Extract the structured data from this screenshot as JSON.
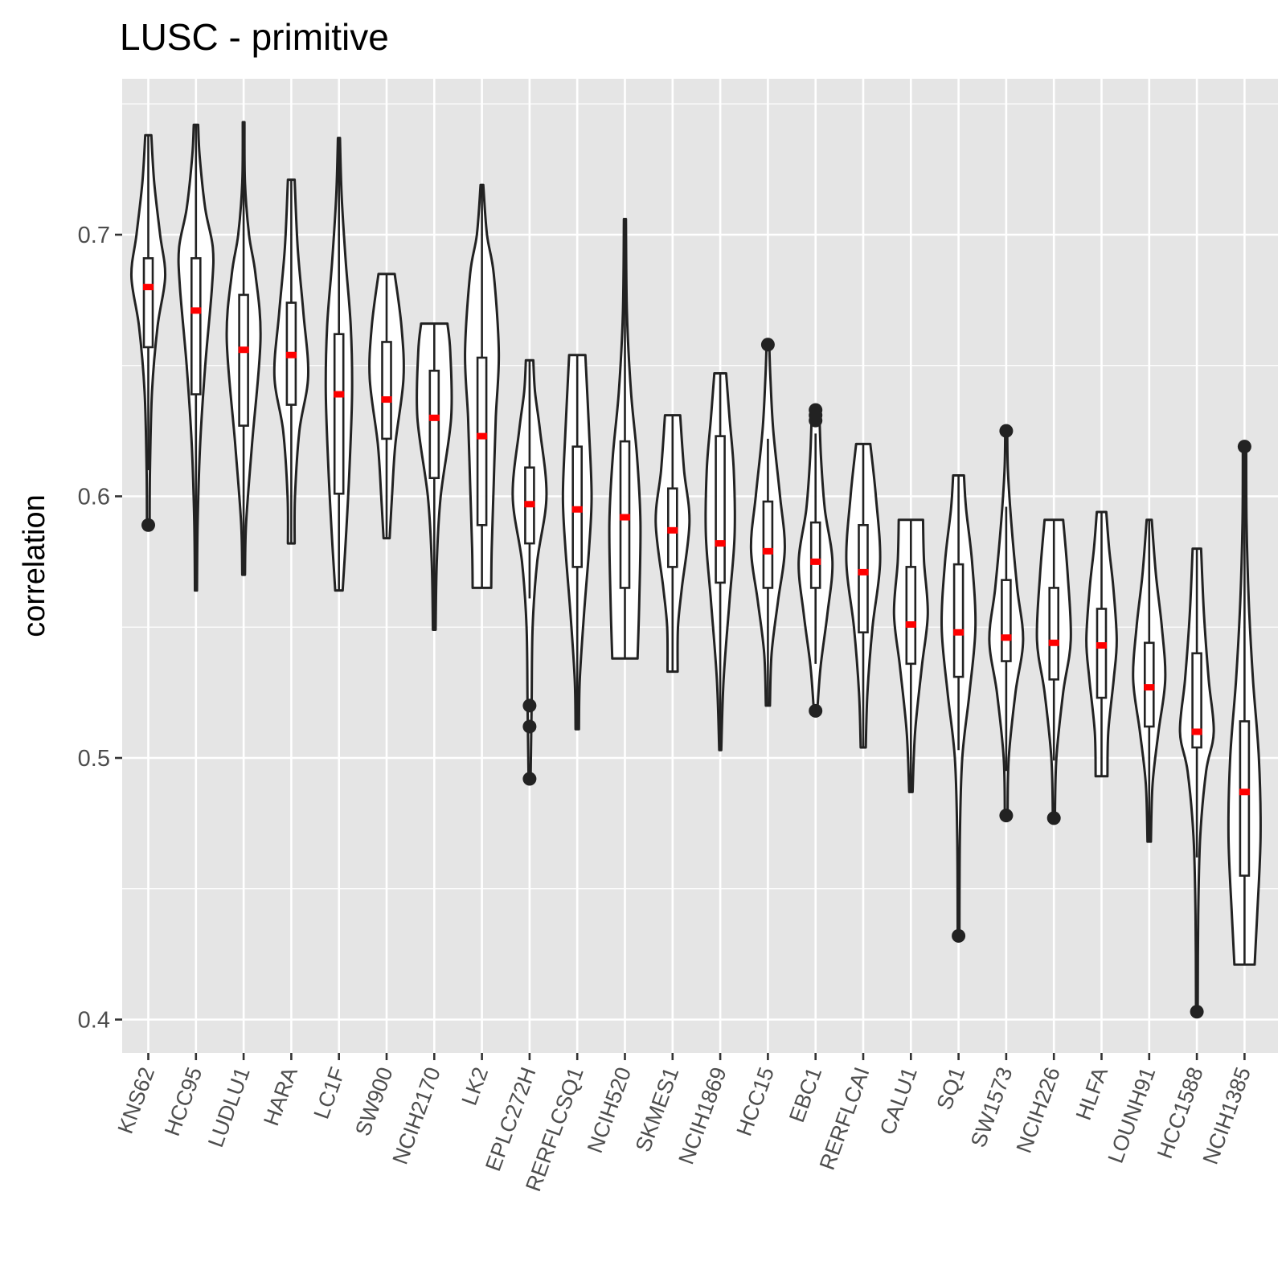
{
  "colors": {
    "panel": "#e5e5e5",
    "grid": "#ffffff",
    "violin_stroke": "#222222",
    "median": "#ff0000",
    "tick_text": "#4d4d4d"
  },
  "chart_data": {
    "type": "violin",
    "title": "LUSC - primitive",
    "xlabel": "",
    "ylabel": "correlation",
    "ylim": [
      0.39,
      0.75
    ],
    "yticks": [
      0.4,
      0.5,
      0.6,
      0.7
    ],
    "ytick_labels": [
      "0.4",
      "0.5",
      "0.6",
      "0.7"
    ],
    "grid": true,
    "categories": [
      "KNS62",
      "HCC95",
      "LUDLU1",
      "HARA",
      "LC1F",
      "SW900",
      "NCIH2170",
      "LK2",
      "EPLC272H",
      "RERFLCSQ1",
      "NCIH520",
      "SKMES1",
      "NCIH1869",
      "HCC15",
      "EBC1",
      "RERFLCAI",
      "CALU1",
      "SQ1",
      "SW1573",
      "NCIH226",
      "HLFA",
      "LOUNH91",
      "HCC1588",
      "NCIH1385"
    ],
    "series": [
      {
        "min": 0.589,
        "max": 0.738,
        "q1": 0.657,
        "median": 0.68,
        "q3": 0.691,
        "wlo": 0.61,
        "whi": 0.738,
        "outliers": [
          0.589
        ],
        "shape": [
          [
            0.589,
            0.08
          ],
          [
            0.61,
            0.1
          ],
          [
            0.64,
            0.22
          ],
          [
            0.665,
            0.55
          ],
          [
            0.684,
            1.0
          ],
          [
            0.7,
            0.7
          ],
          [
            0.72,
            0.35
          ],
          [
            0.738,
            0.18
          ]
        ]
      },
      {
        "min": 0.564,
        "max": 0.742,
        "q1": 0.639,
        "median": 0.671,
        "q3": 0.691,
        "wlo": 0.564,
        "whi": 0.742,
        "outliers": [],
        "shape": [
          [
            0.564,
            0.06
          ],
          [
            0.59,
            0.1
          ],
          [
            0.62,
            0.25
          ],
          [
            0.65,
            0.55
          ],
          [
            0.68,
            0.95
          ],
          [
            0.695,
            1.0
          ],
          [
            0.71,
            0.55
          ],
          [
            0.73,
            0.22
          ],
          [
            0.742,
            0.13
          ]
        ]
      },
      {
        "min": 0.57,
        "max": 0.743,
        "q1": 0.627,
        "median": 0.656,
        "q3": 0.677,
        "wlo": 0.57,
        "whi": 0.743,
        "outliers": [],
        "shape": [
          [
            0.57,
            0.08
          ],
          [
            0.59,
            0.15
          ],
          [
            0.62,
            0.5
          ],
          [
            0.66,
            1.0
          ],
          [
            0.685,
            0.7
          ],
          [
            0.7,
            0.32
          ],
          [
            0.72,
            0.08
          ],
          [
            0.743,
            0.05
          ]
        ]
      },
      {
        "min": 0.582,
        "max": 0.721,
        "q1": 0.635,
        "median": 0.654,
        "q3": 0.674,
        "wlo": 0.582,
        "whi": 0.721,
        "outliers": [],
        "shape": [
          [
            0.582,
            0.2
          ],
          [
            0.6,
            0.22
          ],
          [
            0.625,
            0.48
          ],
          [
            0.646,
            1.0
          ],
          [
            0.67,
            0.72
          ],
          [
            0.695,
            0.38
          ],
          [
            0.721,
            0.2
          ]
        ]
      },
      {
        "min": 0.564,
        "max": 0.737,
        "q1": 0.601,
        "median": 0.639,
        "q3": 0.662,
        "wlo": 0.564,
        "whi": 0.737,
        "outliers": [],
        "shape": [
          [
            0.564,
            0.22
          ],
          [
            0.585,
            0.42
          ],
          [
            0.61,
            0.62
          ],
          [
            0.64,
            0.78
          ],
          [
            0.665,
            0.7
          ],
          [
            0.69,
            0.4
          ],
          [
            0.715,
            0.16
          ],
          [
            0.737,
            0.06
          ]
        ]
      },
      {
        "min": 0.584,
        "max": 0.685,
        "q1": 0.622,
        "median": 0.637,
        "q3": 0.659,
        "wlo": 0.584,
        "whi": 0.685,
        "outliers": [],
        "shape": [
          [
            0.584,
            0.18
          ],
          [
            0.6,
            0.32
          ],
          [
            0.62,
            0.52
          ],
          [
            0.645,
            1.0
          ],
          [
            0.665,
            0.88
          ],
          [
            0.685,
            0.48
          ]
        ]
      },
      {
        "min": 0.549,
        "max": 0.666,
        "q1": 0.607,
        "median": 0.63,
        "q3": 0.648,
        "wlo": 0.549,
        "whi": 0.666,
        "outliers": [],
        "shape": [
          [
            0.549,
            0.08
          ],
          [
            0.575,
            0.15
          ],
          [
            0.6,
            0.38
          ],
          [
            0.63,
            1.0
          ],
          [
            0.655,
            0.95
          ],
          [
            0.666,
            0.78
          ]
        ]
      },
      {
        "min": 0.565,
        "max": 0.719,
        "q1": 0.589,
        "median": 0.623,
        "q3": 0.653,
        "wlo": 0.565,
        "whi": 0.719,
        "outliers": [],
        "shape": [
          [
            0.565,
            0.55
          ],
          [
            0.58,
            0.58
          ],
          [
            0.605,
            0.7
          ],
          [
            0.63,
            0.82
          ],
          [
            0.655,
            1.0
          ],
          [
            0.685,
            0.7
          ],
          [
            0.7,
            0.3
          ],
          [
            0.719,
            0.08
          ]
        ]
      },
      {
        "min": 0.492,
        "max": 0.652,
        "q1": 0.582,
        "median": 0.597,
        "q3": 0.611,
        "wlo": 0.561,
        "whi": 0.652,
        "outliers": [
          0.492,
          0.512,
          0.52
        ],
        "shape": [
          [
            0.492,
            0.06
          ],
          [
            0.52,
            0.12
          ],
          [
            0.55,
            0.18
          ],
          [
            0.575,
            0.45
          ],
          [
            0.6,
            1.0
          ],
          [
            0.625,
            0.62
          ],
          [
            0.64,
            0.32
          ],
          [
            0.652,
            0.22
          ]
        ]
      },
      {
        "min": 0.511,
        "max": 0.654,
        "q1": 0.573,
        "median": 0.595,
        "q3": 0.619,
        "wlo": 0.511,
        "whi": 0.654,
        "outliers": [],
        "shape": [
          [
            0.511,
            0.1
          ],
          [
            0.53,
            0.15
          ],
          [
            0.555,
            0.4
          ],
          [
            0.58,
            0.7
          ],
          [
            0.6,
            0.85
          ],
          [
            0.625,
            0.7
          ],
          [
            0.654,
            0.48
          ]
        ]
      },
      {
        "min": 0.538,
        "max": 0.706,
        "q1": 0.565,
        "median": 0.592,
        "q3": 0.621,
        "wlo": 0.538,
        "whi": 0.706,
        "outliers": [],
        "shape": [
          [
            0.538,
            0.75
          ],
          [
            0.56,
            0.85
          ],
          [
            0.59,
            0.92
          ],
          [
            0.615,
            0.72
          ],
          [
            0.64,
            0.36
          ],
          [
            0.67,
            0.12
          ],
          [
            0.706,
            0.06
          ]
        ]
      },
      {
        "min": 0.533,
        "max": 0.631,
        "q1": 0.573,
        "median": 0.587,
        "q3": 0.603,
        "wlo": 0.533,
        "whi": 0.631,
        "outliers": [],
        "shape": [
          [
            0.533,
            0.3
          ],
          [
            0.55,
            0.32
          ],
          [
            0.565,
            0.55
          ],
          [
            0.59,
            1.0
          ],
          [
            0.61,
            0.68
          ],
          [
            0.631,
            0.45
          ]
        ]
      },
      {
        "min": 0.503,
        "max": 0.647,
        "q1": 0.567,
        "median": 0.582,
        "q3": 0.623,
        "wlo": 0.503,
        "whi": 0.647,
        "outliers": [],
        "shape": [
          [
            0.503,
            0.06
          ],
          [
            0.53,
            0.2
          ],
          [
            0.56,
            0.55
          ],
          [
            0.585,
            0.85
          ],
          [
            0.61,
            0.8
          ],
          [
            0.63,
            0.55
          ],
          [
            0.647,
            0.35
          ]
        ]
      },
      {
        "min": 0.52,
        "max": 0.658,
        "q1": 0.565,
        "median": 0.579,
        "q3": 0.598,
        "wlo": 0.52,
        "whi": 0.622,
        "outliers": [
          0.658
        ],
        "shape": [
          [
            0.52,
            0.12
          ],
          [
            0.54,
            0.22
          ],
          [
            0.56,
            0.6
          ],
          [
            0.58,
            1.0
          ],
          [
            0.6,
            0.72
          ],
          [
            0.625,
            0.32
          ],
          [
            0.645,
            0.15
          ],
          [
            0.658,
            0.08
          ]
        ]
      },
      {
        "min": 0.518,
        "max": 0.633,
        "q1": 0.565,
        "median": 0.575,
        "q3": 0.59,
        "wlo": 0.536,
        "whi": 0.624,
        "outliers": [
          0.518,
          0.629,
          0.631,
          0.633
        ],
        "shape": [
          [
            0.518,
            0.1
          ],
          [
            0.535,
            0.3
          ],
          [
            0.555,
            0.7
          ],
          [
            0.575,
            1.0
          ],
          [
            0.595,
            0.55
          ],
          [
            0.615,
            0.32
          ],
          [
            0.633,
            0.22
          ]
        ]
      },
      {
        "min": 0.504,
        "max": 0.62,
        "q1": 0.548,
        "median": 0.571,
        "q3": 0.589,
        "wlo": 0.504,
        "whi": 0.62,
        "outliers": [],
        "shape": [
          [
            0.504,
            0.15
          ],
          [
            0.525,
            0.25
          ],
          [
            0.55,
            0.55
          ],
          [
            0.575,
            1.0
          ],
          [
            0.6,
            0.75
          ],
          [
            0.62,
            0.42
          ]
        ]
      },
      {
        "min": 0.487,
        "max": 0.591,
        "q1": 0.536,
        "median": 0.551,
        "q3": 0.573,
        "wlo": 0.487,
        "whi": 0.591,
        "outliers": [],
        "shape": [
          [
            0.487,
            0.1
          ],
          [
            0.51,
            0.25
          ],
          [
            0.535,
            0.65
          ],
          [
            0.555,
            1.0
          ],
          [
            0.575,
            0.78
          ],
          [
            0.591,
            0.72
          ]
        ]
      },
      {
        "min": 0.432,
        "max": 0.608,
        "q1": 0.531,
        "median": 0.548,
        "q3": 0.574,
        "wlo": 0.503,
        "whi": 0.608,
        "outliers": [
          0.432
        ],
        "shape": [
          [
            0.432,
            0.05
          ],
          [
            0.47,
            0.08
          ],
          [
            0.5,
            0.22
          ],
          [
            0.525,
            0.65
          ],
          [
            0.55,
            1.0
          ],
          [
            0.575,
            0.8
          ],
          [
            0.595,
            0.45
          ],
          [
            0.608,
            0.32
          ]
        ]
      },
      {
        "min": 0.478,
        "max": 0.625,
        "q1": 0.537,
        "median": 0.546,
        "q3": 0.568,
        "wlo": 0.495,
        "whi": 0.596,
        "outliers": [
          0.478,
          0.625
        ],
        "shape": [
          [
            0.478,
            0.08
          ],
          [
            0.5,
            0.15
          ],
          [
            0.525,
            0.55
          ],
          [
            0.545,
            1.0
          ],
          [
            0.565,
            0.65
          ],
          [
            0.59,
            0.3
          ],
          [
            0.61,
            0.1
          ],
          [
            0.625,
            0.06
          ]
        ]
      },
      {
        "min": 0.477,
        "max": 0.591,
        "q1": 0.53,
        "median": 0.544,
        "q3": 0.565,
        "wlo": 0.499,
        "whi": 0.591,
        "outliers": [
          0.477
        ],
        "shape": [
          [
            0.477,
            0.06
          ],
          [
            0.5,
            0.15
          ],
          [
            0.525,
            0.55
          ],
          [
            0.545,
            1.0
          ],
          [
            0.57,
            0.82
          ],
          [
            0.591,
            0.55
          ]
        ]
      },
      {
        "min": 0.493,
        "max": 0.594,
        "q1": 0.523,
        "median": 0.543,
        "q3": 0.557,
        "wlo": 0.493,
        "whi": 0.594,
        "outliers": [],
        "shape": [
          [
            0.493,
            0.35
          ],
          [
            0.51,
            0.4
          ],
          [
            0.53,
            0.72
          ],
          [
            0.545,
            0.9
          ],
          [
            0.565,
            0.7
          ],
          [
            0.58,
            0.45
          ],
          [
            0.594,
            0.28
          ]
        ]
      },
      {
        "min": 0.468,
        "max": 0.591,
        "q1": 0.512,
        "median": 0.527,
        "q3": 0.544,
        "wlo": 0.468,
        "whi": 0.591,
        "outliers": [],
        "shape": [
          [
            0.468,
            0.1
          ],
          [
            0.49,
            0.2
          ],
          [
            0.51,
            0.55
          ],
          [
            0.53,
            0.95
          ],
          [
            0.55,
            0.75
          ],
          [
            0.57,
            0.4
          ],
          [
            0.591,
            0.15
          ]
        ]
      },
      {
        "min": 0.403,
        "max": 0.58,
        "q1": 0.504,
        "median": 0.51,
        "q3": 0.54,
        "wlo": 0.462,
        "whi": 0.58,
        "outliers": [
          0.403
        ],
        "shape": [
          [
            0.403,
            0.05
          ],
          [
            0.44,
            0.08
          ],
          [
            0.47,
            0.2
          ],
          [
            0.495,
            0.55
          ],
          [
            0.51,
            1.0
          ],
          [
            0.53,
            0.7
          ],
          [
            0.555,
            0.42
          ],
          [
            0.58,
            0.25
          ]
        ]
      },
      {
        "min": 0.421,
        "max": 0.619,
        "q1": 0.455,
        "median": 0.487,
        "q3": 0.514,
        "wlo": 0.421,
        "whi": 0.619,
        "outliers": [
          0.619
        ],
        "shape": [
          [
            0.421,
            0.6
          ],
          [
            0.44,
            0.75
          ],
          [
            0.47,
            0.95
          ],
          [
            0.5,
            0.85
          ],
          [
            0.53,
            0.5
          ],
          [
            0.56,
            0.25
          ],
          [
            0.59,
            0.12
          ],
          [
            0.619,
            0.1
          ]
        ]
      }
    ]
  }
}
